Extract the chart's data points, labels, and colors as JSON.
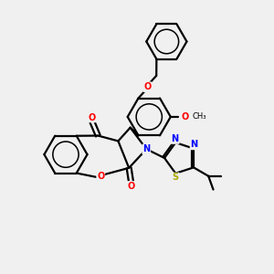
{
  "bg_color": "#f0f0f0",
  "bond_color": "#000000",
  "bond_width": 1.6,
  "atom_colors": {
    "O": "#ff0000",
    "N": "#0000ff",
    "S": "#aaaa00",
    "C": "#000000"
  },
  "font_size": 7.0,
  "fig_size": [
    3.0,
    3.0
  ],
  "dpi": 100
}
